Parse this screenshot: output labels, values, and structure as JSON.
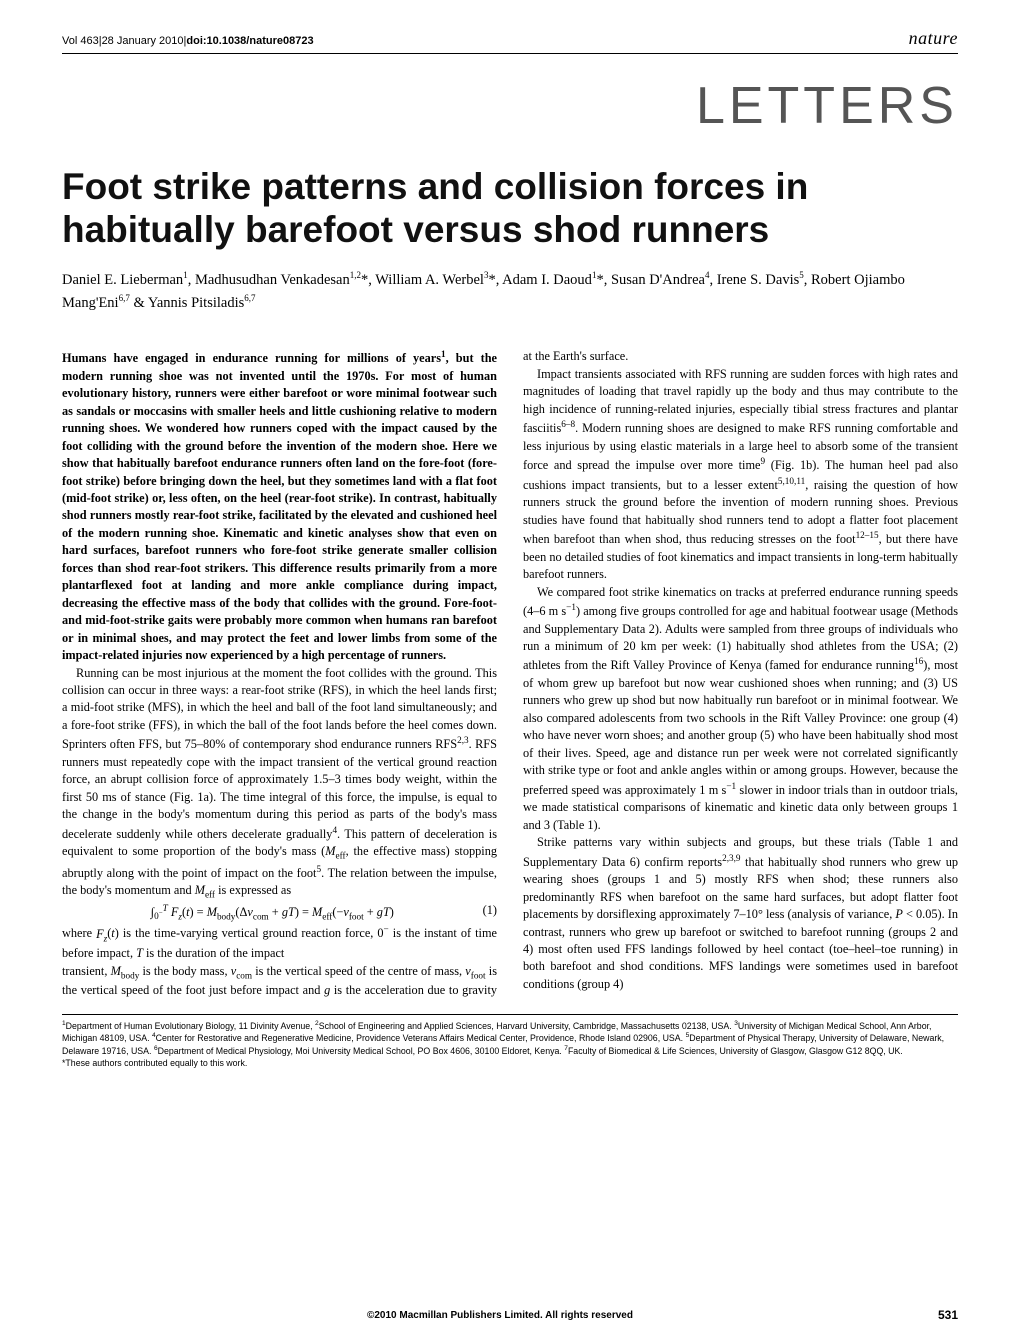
{
  "header": {
    "issue_line_prefix": "Vol 463",
    "issue_date": "28 January 2010",
    "doi_label": "doi:10.1038/nature08723",
    "journal": "nature"
  },
  "section": "LETTERS",
  "title": "Foot strike patterns and collision forces in habitually barefoot versus shod runners",
  "authors_html": "Daniel E. Lieberman<sup>1</sup>, Madhusudhan Venkadesan<sup>1,2</sup>*, William A. Werbel<sup>3</sup>*, Adam I. Daoud<sup>1</sup>*, Susan D'Andrea<sup>4</sup>, Irene S. Davis<sup>5</sup>, Robert Ojiambo Mang'Eni<sup>6,7</sup> & Yannis Pitsiladis<sup>6,7</sup>",
  "abstract": "Humans have engaged in endurance running for millions of years<sup>1</sup>, but the modern running shoe was not invented until the 1970s. For most of human evolutionary history, runners were either barefoot or wore minimal footwear such as sandals or moccasins with smaller heels and little cushioning relative to modern running shoes. We wondered how runners coped with the impact caused by the foot colliding with the ground before the invention of the modern shoe. Here we show that habitually barefoot endurance runners often land on the fore-foot (fore-foot strike) before bringing down the heel, but they sometimes land with a flat foot (mid-foot strike) or, less often, on the heel (rear-foot strike). In contrast, habitually shod runners mostly rear-foot strike, facilitated by the elevated and cushioned heel of the modern running shoe. Kinematic and kinetic analyses show that even on hard surfaces, barefoot runners who fore-foot strike generate smaller collision forces than shod rear-foot strikers. This difference results primarily from a more plantarflexed foot at landing and more ankle compliance during impact, decreasing the effective mass of the body that collides with the ground. Fore-foot- and mid-foot-strike gaits were probably more common when humans ran barefoot or in minimal shoes, and may protect the feet and lower limbs from some of the impact-related injuries now experienced by a high percentage of runners.",
  "body": {
    "p1": "Running can be most injurious at the moment the foot collides with the ground. This collision can occur in three ways: a rear-foot strike (RFS), in which the heel lands first; a mid-foot strike (MFS), in which the heel and ball of the foot land simultaneously; and a fore-foot strike (FFS), in which the ball of the foot lands before the heel comes down. Sprinters often FFS, but 75–80% of contemporary shod endurance runners RFS<sup>2,3</sup>. RFS runners must repeatedly cope with the impact transient of the vertical ground reaction force, an abrupt collision force of approximately 1.5–3 times body weight, within the first 50 ms of stance (Fig. 1a). The time integral of this force, the impulse, is equal to the change in the body's momentum during this period as parts of the body's mass decelerate suddenly while others decelerate gradually<sup>4</sup>. This pattern of deceleration is equivalent to some proportion of the body's mass (<span class=\"ital\">M</span><sub>eff</sub>, the effective mass) stopping abruptly along with the point of impact on the foot<sup>5</sup>. The relation between the impulse, the body's momentum and <span class=\"ital\">M</span><sub>eff</sub> is expressed as",
    "equation": "∫<sub>0<sup>−</sup></sub><sup><span class=\"ital\">T</span></sup> <span class=\"ital\">F<sub>z</sub></span>(<span class=\"ital\">t</span>) = <span class=\"ital\">M</span><sub>body</sub>(Δ<span class=\"ital\">v</span><sub>com</sub> + <span class=\"ital\">gT</span>) = <span class=\"ital\">M</span><sub>eff</sub>(−<span class=\"ital\">v</span><sub>foot</sub> + <span class=\"ital\">gT</span>)",
    "eq_num": "(1)",
    "p2": "where <span class=\"ital\">F<sub>z</sub></span>(<span class=\"ital\">t</span>) is the time-varying vertical ground reaction force, 0<sup>−</sup> is the instant of time before impact, <span class=\"ital\">T</span> is the duration of the impact",
    "p3": "transient, <span class=\"ital\">M</span><sub>body</sub> is the body mass, <span class=\"ital\">v</span><sub>com</sub> is the vertical speed of the centre of mass, <span class=\"ital\">v</span><sub>foot</sub> is the vertical speed of the foot just before impact and <span class=\"ital\">g</span> is the acceleration due to gravity at the Earth's surface.",
    "p4": "Impact transients associated with RFS running are sudden forces with high rates and magnitudes of loading that travel rapidly up the body and thus may contribute to the high incidence of running-related injuries, especially tibial stress fractures and plantar fasciitis<sup>6–8</sup>. Modern running shoes are designed to make RFS running comfortable and less injurious by using elastic materials in a large heel to absorb some of the transient force and spread the impulse over more time<sup>9</sup> (Fig. 1b). The human heel pad also cushions impact transients, but to a lesser extent<sup>5,10,11</sup>, raising the question of how runners struck the ground before the invention of modern running shoes. Previous studies have found that habitually shod runners tend to adopt a flatter foot placement when barefoot than when shod, thus reducing stresses on the foot<sup>12–15</sup>, but there have been no detailed studies of foot kinematics and impact transients in long-term habitually barefoot runners.",
    "p5": "We compared foot strike kinematics on tracks at preferred endurance running speeds (4–6 m s<sup>−1</sup>) among five groups controlled for age and habitual footwear usage (Methods and Supplementary Data 2). Adults were sampled from three groups of individuals who run a minimum of 20 km per week: (1) habitually shod athletes from the USA; (2) athletes from the Rift Valley Province of Kenya (famed for endurance running<sup>16</sup>), most of whom grew up barefoot but now wear cushioned shoes when running; and (3) US runners who grew up shod but now habitually run barefoot or in minimal footwear. We also compared adolescents from two schools in the Rift Valley Province: one group (4) who have never worn shoes; and another group (5) who have been habitually shod most of their lives. Speed, age and distance run per week were not correlated significantly with strike type or foot and ankle angles within or among groups. However, because the preferred speed was approximately 1 m s<sup>−1</sup> slower in indoor trials than in outdoor trials, we made statistical comparisons of kinematic and kinetic data only between groups 1 and 3 (Table 1).",
    "p6": "Strike patterns vary within subjects and groups, but these trials (Table 1 and Supplementary Data 6) confirm reports<sup>2,3,9</sup> that habitually shod runners who grew up wearing shoes (groups 1 and 5) mostly RFS when shod; these runners also predominantly RFS when barefoot on the same hard surfaces, but adopt flatter foot placements by dorsiflexing approximately 7–10° less (analysis of variance, <span class=\"ital\">P</span> < 0.05). In contrast, runners who grew up barefoot or switched to barefoot running (groups 2 and 4) most often used FFS landings followed by heel contact (toe–heel–toe running) in both barefoot and shod conditions. MFS landings were sometimes used in barefoot conditions (group 4)"
  },
  "affiliations": "<sup>1</sup>Department of Human Evolutionary Biology, 11 Divinity Avenue, <sup>2</sup>School of Engineering and Applied Sciences, Harvard University, Cambridge, Massachusetts 02138, USA. <sup>3</sup>University of Michigan Medical School, Ann Arbor, Michigan 48109, USA. <sup>4</sup>Center for Restorative and Regenerative Medicine, Providence Veterans Affairs Medical Center, Providence, Rhode Island 02906, USA. <sup>5</sup>Department of Physical Therapy, University of Delaware, Newark, Delaware 19716, USA. <sup>6</sup>Department of Medical Physiology, Moi University Medical School, PO Box 4606, 30100 Eldoret, Kenya. <sup>7</sup>Faculty of Biomedical & Life Sciences, University of Glasgow, Glasgow G12 8QQ, UK.<br>*These authors contributed equally to this work.",
  "footer": {
    "copyright": "©2010 Macmillan Publishers Limited. All rights reserved",
    "page_number": "531"
  }
}
